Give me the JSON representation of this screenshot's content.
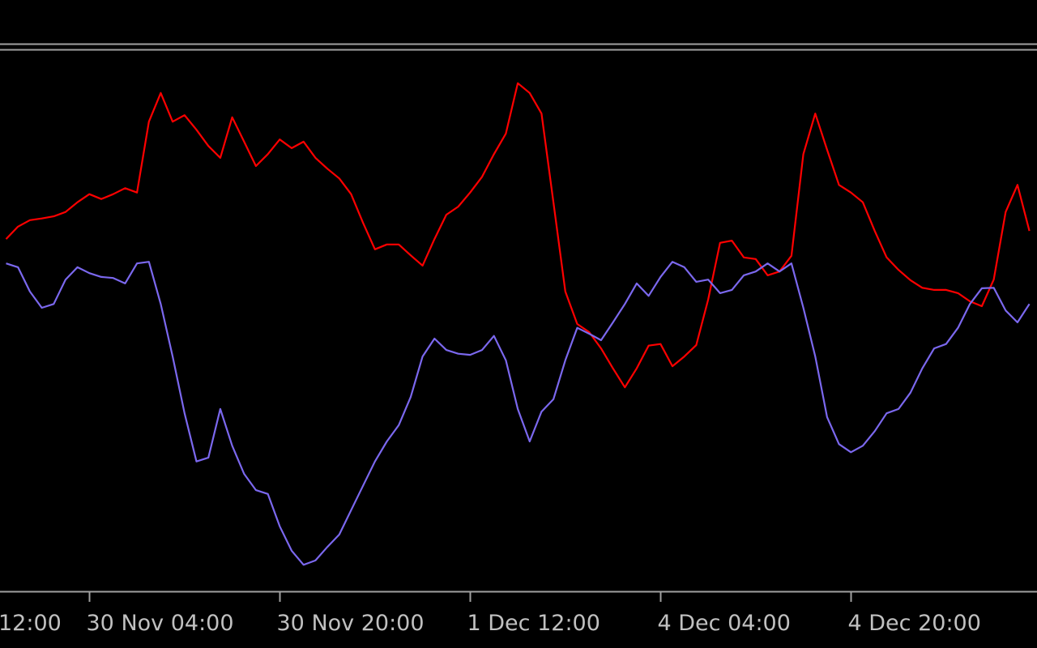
{
  "chart_data": {
    "type": "line",
    "x_edge_label": "12:00",
    "categories": [
      null,
      null,
      null,
      null,
      null,
      null,
      null,
      "30 Nov 04:00",
      null,
      null,
      null,
      null,
      null,
      null,
      null,
      null,
      null,
      null,
      null,
      null,
      null,
      null,
      null,
      "30 Nov 20:00",
      null,
      null,
      null,
      null,
      null,
      null,
      null,
      null,
      null,
      null,
      null,
      null,
      null,
      null,
      null,
      "1 Dec 12:00",
      null,
      null,
      null,
      null,
      null,
      null,
      null,
      null,
      null,
      null,
      null,
      null,
      null,
      null,
      null,
      "4 Dec 04:00",
      null,
      null,
      null,
      null,
      null,
      null,
      null,
      null,
      null,
      null,
      null,
      null,
      null,
      null,
      null,
      "4 Dec 20:00",
      null,
      null,
      null,
      null,
      null,
      null,
      null,
      null,
      null,
      null,
      null,
      null,
      null,
      null,
      null
    ],
    "series": [
      {
        "color": "#ff0000",
        "values": [
          65.1,
          67.4,
          68.6,
          68.9,
          69.3,
          70.1,
          71.9,
          73.4,
          72.5,
          73.4,
          74.5,
          73.7,
          86.8,
          92.1,
          86.8,
          88.0,
          85.3,
          82.3,
          80.1,
          87.6,
          83.1,
          78.6,
          80.8,
          83.5,
          81.9,
          83.1,
          80.1,
          78.1,
          76.3,
          73.4,
          68.1,
          63.2,
          64.1,
          64.1,
          62.1,
          60.2,
          65.1,
          69.6,
          71.1,
          73.7,
          76.6,
          80.8,
          84.6,
          93.9,
          92.1,
          88.3,
          71.9,
          55.4,
          49.4,
          47.9,
          44.9,
          41.2,
          37.7,
          41.2,
          45.4,
          45.7,
          41.6,
          43.4,
          45.5,
          53.9,
          64.4,
          64.8,
          61.7,
          61.4,
          58.4,
          59.1,
          62.0,
          80.8,
          88.3,
          81.6,
          75.1,
          73.7,
          71.9,
          66.6,
          61.7,
          59.4,
          57.5,
          56.1,
          55.7,
          55.7,
          55.1,
          53.6,
          52.7,
          57.6,
          70.1,
          75.1,
          66.6
        ]
      },
      {
        "color": "#7b68ee",
        "values": [
          60.6,
          59.9,
          55.4,
          52.4,
          53.1,
          57.6,
          59.9,
          58.8,
          58.1,
          57.9,
          56.9,
          60.6,
          60.9,
          53.1,
          43.4,
          32.9,
          24.0,
          24.7,
          33.7,
          26.9,
          21.7,
          18.7,
          18.0,
          12.0,
          7.5,
          4.9,
          5.7,
          8.2,
          10.5,
          15.0,
          19.5,
          24.0,
          27.7,
          30.7,
          35.9,
          43.4,
          46.7,
          44.6,
          43.9,
          43.7,
          44.6,
          47.2,
          42.7,
          33.7,
          27.7,
          33.2,
          35.5,
          42.7,
          48.7,
          47.6,
          46.4,
          49.7,
          53.1,
          56.9,
          54.6,
          58.1,
          60.9,
          59.9,
          57.2,
          57.6,
          55.1,
          55.7,
          58.4,
          59.1,
          60.6,
          59.1,
          60.6,
          52.4,
          43.4,
          32.2,
          27.2,
          25.7,
          26.9,
          29.6,
          32.9,
          33.7,
          36.7,
          41.2,
          44.9,
          45.7,
          48.7,
          53.1,
          56.0,
          56.1,
          51.9,
          49.7,
          53.1
        ]
      }
    ],
    "ylim": [
      0,
      100
    ]
  }
}
